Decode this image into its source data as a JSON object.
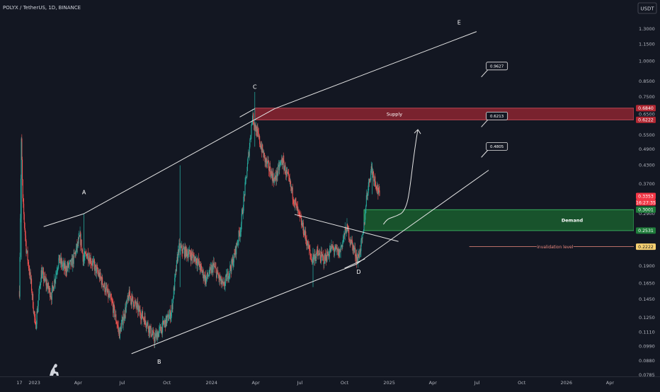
{
  "header": {
    "symbol_line": "POLYX / TetherUS, 1D, BINANCE",
    "currency_button": "USDT"
  },
  "chart_data": {
    "type": "candlestick",
    "symbol": "POLYX / TetherUS",
    "interval": "1D",
    "exchange": "BINANCE",
    "y_scale": "log",
    "ylim": [
      0.0775,
      1.45
    ],
    "xlim": [
      "2022-10-22",
      "2026-05-20"
    ],
    "price_ticks": [
      "1.3000",
      "1.1500",
      "1.0000",
      "0.8500",
      "0.7500",
      "0.6500",
      "0.5500",
      "0.4900",
      "0.4300",
      "0.3700",
      "0.3300",
      "0.2900",
      "0.2200",
      "0.1900",
      "0.1650",
      "0.1450",
      "0.1250",
      "0.1110",
      "0.0990",
      "0.0880",
      "0.0785"
    ],
    "time_ticks": [
      {
        "label": "17",
        "date": "2022-12-01"
      },
      {
        "label": "2023",
        "date": "2023-01-01"
      },
      {
        "label": "Apr",
        "date": "2023-04-01"
      },
      {
        "label": "Jul",
        "date": "2023-07-01"
      },
      {
        "label": "Oct",
        "date": "2023-10-01"
      },
      {
        "label": "2024",
        "date": "2024-01-01"
      },
      {
        "label": "Apr",
        "date": "2024-04-01"
      },
      {
        "label": "Jul",
        "date": "2024-07-01"
      },
      {
        "label": "Oct",
        "date": "2024-10-01"
      },
      {
        "label": "2025",
        "date": "2025-01-01"
      },
      {
        "label": "Apr",
        "date": "2025-04-01"
      },
      {
        "label": "Jul",
        "date": "2025-07-01"
      },
      {
        "label": "Oct",
        "date": "2025-10-01"
      },
      {
        "label": "2026",
        "date": "2026-01-01"
      },
      {
        "label": "Apr",
        "date": "2026-04-01"
      }
    ],
    "price_path": [
      [
        "2022-12-01",
        0.155
      ],
      [
        "2022-12-05",
        0.52
      ],
      [
        "2022-12-08",
        0.32
      ],
      [
        "2022-12-15",
        0.22
      ],
      [
        "2022-12-25",
        0.165
      ],
      [
        "2023-01-03",
        0.115
      ],
      [
        "2023-01-15",
        0.18
      ],
      [
        "2023-02-05",
        0.15
      ],
      [
        "2023-02-20",
        0.2
      ],
      [
        "2023-03-05",
        0.185
      ],
      [
        "2023-03-20",
        0.195
      ],
      [
        "2023-04-05",
        0.24
      ],
      [
        "2023-04-12",
        0.2
      ],
      [
        "2023-04-20",
        0.21
      ],
      [
        "2023-05-15",
        0.175
      ],
      [
        "2023-06-10",
        0.14
      ],
      [
        "2023-06-25",
        0.11
      ],
      [
        "2023-07-15",
        0.15
      ],
      [
        "2023-08-01",
        0.135
      ],
      [
        "2023-08-20",
        0.12
      ],
      [
        "2023-09-05",
        0.105
      ],
      [
        "2023-09-20",
        0.115
      ],
      [
        "2023-10-10",
        0.13
      ],
      [
        "2023-10-25",
        0.22
      ],
      [
        "2023-11-15",
        0.21
      ],
      [
        "2023-12-01",
        0.2
      ],
      [
        "2023-12-20",
        0.17
      ],
      [
        "2024-01-05",
        0.19
      ],
      [
        "2024-01-25",
        0.16
      ],
      [
        "2024-02-15",
        0.2
      ],
      [
        "2024-03-01",
        0.26
      ],
      [
        "2024-03-15",
        0.43
      ],
      [
        "2024-03-25",
        0.64
      ],
      [
        "2024-04-05",
        0.55
      ],
      [
        "2024-04-20",
        0.45
      ],
      [
        "2024-05-10",
        0.38
      ],
      [
        "2024-05-25",
        0.45
      ],
      [
        "2024-06-10",
        0.37
      ],
      [
        "2024-06-25",
        0.3
      ],
      [
        "2024-07-10",
        0.25
      ],
      [
        "2024-07-25",
        0.2
      ],
      [
        "2024-08-05",
        0.21
      ],
      [
        "2024-08-20",
        0.2
      ],
      [
        "2024-09-05",
        0.22
      ],
      [
        "2024-09-20",
        0.21
      ],
      [
        "2024-10-05",
        0.26
      ],
      [
        "2024-10-15",
        0.23
      ],
      [
        "2024-10-28",
        0.2
      ],
      [
        "2024-11-08",
        0.24
      ],
      [
        "2024-11-15",
        0.33
      ],
      [
        "2024-11-25",
        0.42
      ],
      [
        "2024-12-05",
        0.37
      ],
      [
        "2024-12-12",
        0.335
      ]
    ],
    "trendlines": [
      {
        "points": [
          [
            "2023-01-20",
            0.2615
          ],
          [
            "2023-04-13",
            0.2904
          ]
        ]
      },
      {
        "points": [
          [
            "2023-04-13",
            0.2904
          ],
          [
            "2024-05-10",
            0.6812
          ]
        ]
      },
      {
        "points": [
          [
            "2024-05-10",
            0.6812
          ],
          [
            "2025-06-30",
            1.2733
          ]
        ]
      },
      {
        "points": [
          [
            "2023-07-20",
            0.0932
          ],
          [
            "2024-10-25",
            0.1926
          ]
        ]
      },
      {
        "points": [
          [
            "2024-10-25",
            0.1926
          ],
          [
            "2025-07-25",
            0.4134
          ]
        ]
      },
      {
        "points": [
          [
            "2024-06-20",
            0.2886
          ],
          [
            "2025-01-20",
            0.2318
          ]
        ]
      },
      {
        "points": [
          [
            "2024-02-28",
            0.6363
          ],
          [
            "2024-03-30",
            0.6812
          ]
        ]
      },
      {
        "points": [
          [
            "2024-10-01",
            0.1865
          ],
          [
            "2024-11-12",
            0.2013
          ]
        ]
      }
    ],
    "zones": [
      {
        "name": "Supply",
        "from": "2024-03-30",
        "to": "2026-05-20",
        "top": 0.684,
        "bottom": 0.6222
      },
      {
        "name": "Demand",
        "from": "2024-11-10",
        "to": "2026-05-20",
        "top": 0.3001,
        "bottom": 0.2531
      }
    ],
    "projection_path": [
      [
        "2024-12-20",
        0.2662
      ],
      [
        "2025-01-25",
        0.2904
      ],
      [
        "2025-03-01",
        0.5745
      ]
    ],
    "invalidation": {
      "label": "invalidation level",
      "from": "2025-06-15",
      "to": "2026-05-20",
      "price": 0.2222
    },
    "wave_labels": [
      {
        "label": "A",
        "date": "2023-04-13",
        "price": 0.34
      },
      {
        "label": "B",
        "date": "2023-09-15",
        "price": 0.086
      },
      {
        "label": "C",
        "date": "2024-03-30",
        "price": 0.8
      },
      {
        "label": "D",
        "date": "2024-10-30",
        "price": 0.178
      },
      {
        "label": "E",
        "date": "2025-05-25",
        "price": 1.35
      }
    ],
    "target_callouts": [
      {
        "label": "0.9627",
        "date": "2025-07-20",
        "price": 0.96
      },
      {
        "label": "0.6213",
        "date": "2025-07-20",
        "price": 0.64
      },
      {
        "label": "0.4805",
        "date": "2025-07-20",
        "price": 0.5
      }
    ],
    "price_badges": [
      {
        "label": "0.6840",
        "price": 0.684,
        "color": "#b22833"
      },
      {
        "label": "0.6222",
        "price": 0.6222,
        "color": "#b22833"
      },
      {
        "label": "0.3353",
        "price": 0.3353,
        "color": "#f23645"
      },
      {
        "label": "16:27:35",
        "price": 0.3353,
        "color": "#f23645"
      },
      {
        "label": "0.3001",
        "price": 0.3001,
        "color": "#1e7b3a"
      },
      {
        "label": "0.2531",
        "price": 0.2531,
        "color": "#1e7b3a"
      },
      {
        "label": "0.2222",
        "price": 0.2222,
        "color": "#f7d171"
      }
    ]
  },
  "colors": {
    "background": "#131722",
    "up": "#26a69a",
    "down": "#ef5350",
    "line": "#e6e6e6",
    "supply_fill": "#8c2430",
    "demand_fill": "#1a5e2e",
    "invalidation_line": "#f08a80"
  },
  "logo_icon": "tradingview-dino-icon"
}
